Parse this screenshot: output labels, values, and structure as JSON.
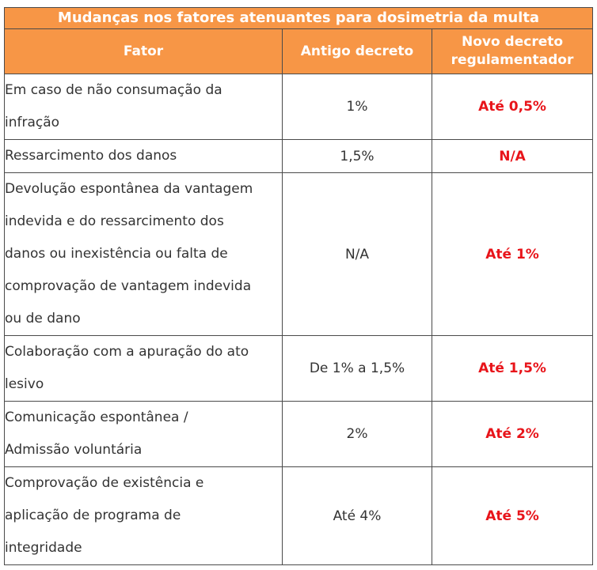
{
  "table": {
    "title": "Mudanças nos fatores atenuantes para dosimetria da multa",
    "headers": {
      "fator": "Fator",
      "antigo": "Antigo decreto",
      "novo_line1": "Novo decreto",
      "novo_line2": "regulamentador"
    },
    "rows": [
      {
        "fator_lines": [
          "Em caso de não consumação da",
          "infração"
        ],
        "antigo": "1%",
        "novo": "Até 0,5%"
      },
      {
        "fator_lines": [
          "Ressarcimento dos danos"
        ],
        "antigo": "1,5%",
        "novo": "N/A"
      },
      {
        "fator_lines": [
          "Devolução espontânea da vantagem",
          "indevida e do ressarcimento dos",
          "danos ou inexistência ou falta de",
          "comprovação de vantagem indevida",
          "ou de dano"
        ],
        "antigo": "N/A",
        "novo": "Até 1%"
      },
      {
        "fator_lines": [
          "Colaboração com a apuração do ato",
          "lesivo"
        ],
        "antigo": "De 1% a 1,5%",
        "novo": "Até 1,5%"
      },
      {
        "fator_lines": [
          "Comunicação espontânea /",
          "Admissão voluntária"
        ],
        "antigo": "2%",
        "novo": "Até 2%"
      },
      {
        "fator_lines": [
          "Comprovação de existência e",
          "aplicação de programa de",
          "integridade"
        ],
        "antigo": "Até 4%",
        "novo": "Até 5%"
      }
    ]
  },
  "colors": {
    "header_bg": "#f79646",
    "header_text": "#ffffff",
    "highlight_text": "#e8141a",
    "body_text": "#333333",
    "border": "#4a4a4a"
  }
}
